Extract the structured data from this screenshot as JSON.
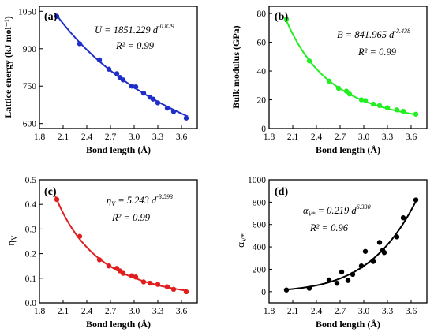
{
  "chart_data": [
    {
      "type": "scatter",
      "panel_label": "(a)",
      "xlabel": "Bond length (Å)",
      "ylabel": "Lattice energy (kJ mol⁻¹)",
      "xlim": [
        1.8,
        3.8
      ],
      "ylim": [
        580,
        1070
      ],
      "xticks": [
        "1.8",
        "2.1",
        "2.4",
        "2.7",
        "3.0",
        "3.3",
        "3.6"
      ],
      "yticks": [
        "600",
        "750",
        "900",
        "1050"
      ],
      "color": "#1f2ec8",
      "fit": {
        "type": "power",
        "a": 1851.229,
        "b": -0.829
      },
      "equation": {
        "lhs": "U = 1851.229 d",
        "exp": "-0.829"
      },
      "r2": "R² = 0.99",
      "points": [
        [
          2.02,
          1030
        ],
        [
          2.31,
          920
        ],
        [
          2.56,
          855
        ],
        [
          2.68,
          818
        ],
        [
          2.78,
          800
        ],
        [
          2.82,
          785
        ],
        [
          2.86,
          775
        ],
        [
          2.97,
          750
        ],
        [
          3.02,
          747
        ],
        [
          3.12,
          722
        ],
        [
          3.2,
          706
        ],
        [
          3.24,
          698
        ],
        [
          3.3,
          683
        ],
        [
          3.42,
          662
        ],
        [
          3.5,
          648
        ],
        [
          3.66,
          622
        ]
      ]
    },
    {
      "type": "scatter",
      "panel_label": "(b)",
      "xlabel": "Bond length (Å)",
      "ylabel": "Bulk modulus (GPa)",
      "xlim": [
        1.8,
        3.8
      ],
      "ylim": [
        0,
        85
      ],
      "xticks": [
        "1.8",
        "2.1",
        "2.4",
        "2.7",
        "3.0",
        "3.3",
        "3.6"
      ],
      "yticks": [
        "0",
        "20",
        "40",
        "60",
        "80"
      ],
      "color": "#22ee22",
      "fit": {
        "type": "power",
        "a": 841.965,
        "b": -3.438
      },
      "equation": {
        "lhs": "B = 841.965 d",
        "exp": "-3.438"
      },
      "r2": "R² = 0.99",
      "points": [
        [
          2.02,
          76
        ],
        [
          2.31,
          47
        ],
        [
          2.56,
          33
        ],
        [
          2.68,
          28
        ],
        [
          2.78,
          26
        ],
        [
          2.82,
          24
        ],
        [
          2.97,
          20
        ],
        [
          3.02,
          19.5
        ],
        [
          3.12,
          17
        ],
        [
          3.2,
          16
        ],
        [
          3.3,
          14.5
        ],
        [
          3.42,
          13
        ],
        [
          3.5,
          12
        ],
        [
          3.66,
          10
        ]
      ]
    },
    {
      "type": "scatter",
      "panel_label": "(c)",
      "xlabel": "Bond length (Å)",
      "ylabel": "η",
      "ylabel_sub": "V",
      "xlim": [
        1.8,
        3.8
      ],
      "ylim": [
        0.0,
        0.5
      ],
      "xticks": [
        "1.8",
        "2.1",
        "2.4",
        "2.7",
        "3.0",
        "3.3",
        "3.6"
      ],
      "yticks": [
        "0.0",
        "0.1",
        "0.2",
        "0.3",
        "0.4",
        "0.5"
      ],
      "color": "#e01e1e",
      "fit": {
        "type": "power",
        "a": 5.243,
        "b": -3.593
      },
      "equation": {
        "lhs": "η",
        "sub": "V",
        "mid": " = 5.243 d",
        "exp": "-3.593"
      },
      "r2": "R² = 0.99",
      "points": [
        [
          2.02,
          0.42
        ],
        [
          2.31,
          0.27
        ],
        [
          2.56,
          0.175
        ],
        [
          2.68,
          0.15
        ],
        [
          2.78,
          0.14
        ],
        [
          2.82,
          0.13
        ],
        [
          2.86,
          0.12
        ],
        [
          2.97,
          0.11
        ],
        [
          3.02,
          0.105
        ],
        [
          3.12,
          0.085
        ],
        [
          3.2,
          0.08
        ],
        [
          3.3,
          0.075
        ],
        [
          3.42,
          0.065
        ],
        [
          3.5,
          0.055
        ],
        [
          3.66,
          0.045
        ]
      ]
    },
    {
      "type": "scatter",
      "panel_label": "(d)",
      "xlabel": "Bond length (Å)",
      "ylabel": "α",
      "ylabel_sub": "V*",
      "xlim": [
        1.8,
        3.8
      ],
      "ylim": [
        -100,
        1000
      ],
      "xticks": [
        "1.8",
        "2.1",
        "2.4",
        "2.7",
        "3.0",
        "3.3",
        "3.6"
      ],
      "yticks": [
        "0",
        "200",
        "400",
        "600",
        "800",
        "1000"
      ],
      "color": "#000000",
      "fit": {
        "type": "power",
        "a": 0.219,
        "b": 6.33
      },
      "equation": {
        "lhs": "α",
        "sub": "V*",
        "mid": " = 0.219 d",
        "exp": "6.330"
      },
      "r2": "R² = 0.96",
      "points": [
        [
          2.02,
          15
        ],
        [
          2.31,
          30
        ],
        [
          2.56,
          105
        ],
        [
          2.66,
          75
        ],
        [
          2.72,
          175
        ],
        [
          2.8,
          100
        ],
        [
          2.86,
          155
        ],
        [
          2.97,
          230
        ],
        [
          3.02,
          360
        ],
        [
          3.12,
          270
        ],
        [
          3.2,
          440
        ],
        [
          3.24,
          370
        ],
        [
          3.26,
          350
        ],
        [
          3.42,
          490
        ],
        [
          3.5,
          660
        ],
        [
          3.66,
          820
        ]
      ]
    }
  ]
}
